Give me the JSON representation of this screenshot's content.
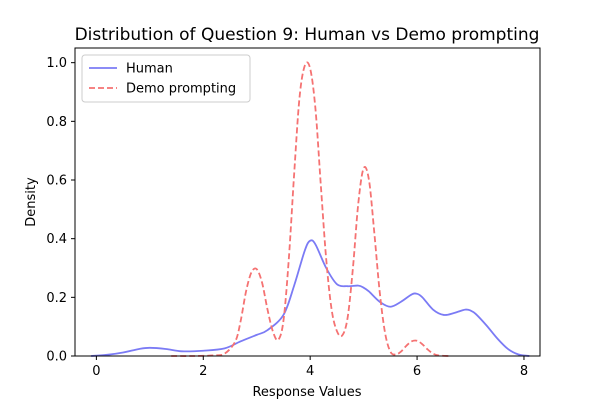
{
  "chart_data": {
    "type": "line",
    "title": "Distribution of Question 9: Human vs Demo prompting",
    "xlabel": "Response Values",
    "ylabel": "Density",
    "xlim": [
      -0.4,
      8.3
    ],
    "ylim": [
      0,
      1.05
    ],
    "xticks": [
      0,
      2,
      4,
      6,
      8
    ],
    "yticks": [
      0.0,
      0.2,
      0.4,
      0.6,
      0.8,
      1.0
    ],
    "xtick_labels": [
      "0",
      "2",
      "4",
      "6",
      "8"
    ],
    "ytick_labels": [
      "0.0",
      "0.2",
      "0.4",
      "0.6",
      "0.8",
      "1.0"
    ],
    "grid": false,
    "legend_position": "top-left",
    "series": [
      {
        "name": "Human",
        "color": "#7b7bf5",
        "style": "solid",
        "x": [
          -0.1,
          0.2,
          0.5,
          0.8,
          1.0,
          1.3,
          1.6,
          2.0,
          2.4,
          2.7,
          3.0,
          3.2,
          3.5,
          3.7,
          3.9,
          4.0,
          4.1,
          4.3,
          4.5,
          4.7,
          4.9,
          5.0,
          5.1,
          5.3,
          5.5,
          5.7,
          5.9,
          6.0,
          6.1,
          6.3,
          6.5,
          6.7,
          6.9,
          7.0,
          7.1,
          7.3,
          7.5,
          7.7,
          7.9,
          8.1
        ],
        "y": [
          0.0,
          0.004,
          0.012,
          0.024,
          0.028,
          0.024,
          0.016,
          0.018,
          0.026,
          0.05,
          0.072,
          0.088,
          0.14,
          0.24,
          0.36,
          0.393,
          0.38,
          0.3,
          0.245,
          0.238,
          0.24,
          0.233,
          0.22,
          0.185,
          0.168,
          0.185,
          0.21,
          0.212,
          0.2,
          0.158,
          0.14,
          0.147,
          0.158,
          0.155,
          0.143,
          0.104,
          0.06,
          0.024,
          0.005,
          0.0
        ]
      },
      {
        "name": "Demo prompting",
        "color": "#f57272",
        "style": "dashed",
        "x": [
          1.4,
          1.8,
          2.2,
          2.4,
          2.6,
          2.7,
          2.8,
          2.9,
          3.0,
          3.1,
          3.2,
          3.3,
          3.4,
          3.5,
          3.6,
          3.7,
          3.8,
          3.9,
          4.0,
          4.1,
          4.2,
          4.3,
          4.4,
          4.5,
          4.6,
          4.7,
          4.8,
          4.9,
          5.0,
          5.1,
          5.2,
          5.3,
          5.4,
          5.5,
          5.6,
          5.7,
          5.8,
          5.9,
          6.0,
          6.1,
          6.2,
          6.3,
          6.4,
          6.6
        ],
        "y": [
          0.0,
          0.0,
          0.002,
          0.008,
          0.05,
          0.12,
          0.22,
          0.285,
          0.296,
          0.25,
          0.16,
          0.085,
          0.055,
          0.12,
          0.33,
          0.62,
          0.88,
          0.99,
          0.98,
          0.84,
          0.58,
          0.33,
          0.16,
          0.085,
          0.07,
          0.13,
          0.3,
          0.52,
          0.64,
          0.6,
          0.42,
          0.22,
          0.08,
          0.015,
          0.005,
          0.015,
          0.035,
          0.05,
          0.052,
          0.04,
          0.022,
          0.008,
          0.002,
          0.0
        ]
      }
    ]
  }
}
